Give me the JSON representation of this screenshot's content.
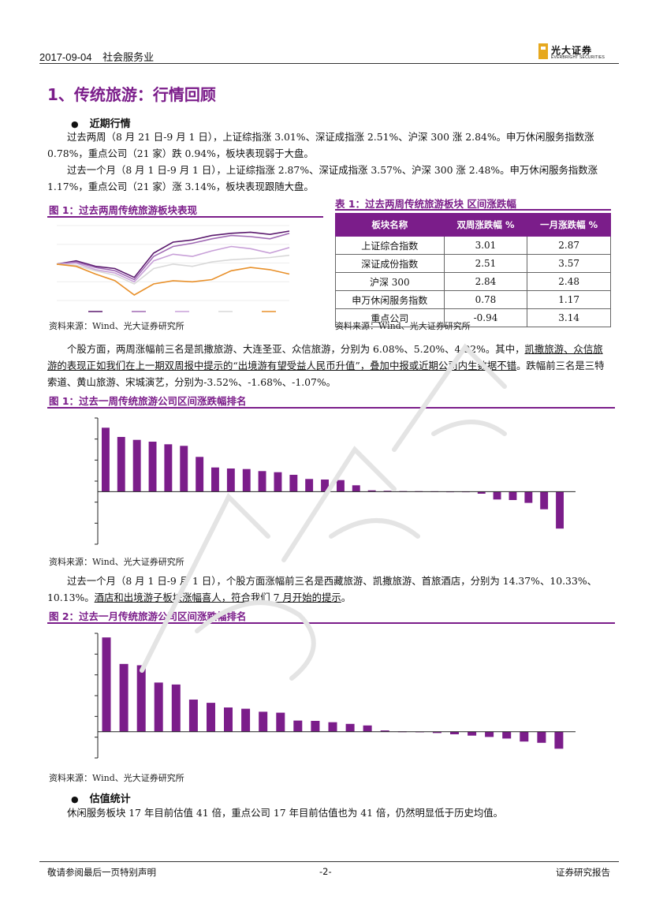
{
  "header": {
    "date": "2017-09-04",
    "industry": "社会服务业",
    "logo_cn": "光大证券",
    "logo_en": "EVERBRIGHT SECURITIES"
  },
  "section_title": "1、传统旅游：行情回顾",
  "recent": {
    "heading": "近期行情",
    "p1": "过去两周（8 月 21 日-9 月 1 日），上证综指涨 3.01%、深证成指涨 2.51%、沪深 300 涨 2.84%。申万休闲服务指数涨 0.78%，重点公司（21 家）跌 0.94%，板块表现弱于大盘。",
    "p2": "过去一个月（8 月 1 日-9 月 1 日），上证综指涨 2.87%、深证成指涨 3.57%、沪深 300 涨 2.48%。申万休闲服务指数涨 1.17%，重点公司（21 家）涨 3.14%，板块表现跟随大盘。"
  },
  "fig_line": {
    "title": "图 1：过去两周传统旅游板块表现",
    "source": "资料来源：Wind、光大证券研究所",
    "chart_data": {
      "type": "line",
      "series": [
        {
          "color": "#5b1a6e",
          "values": [
            0.0,
            0.3,
            -0.2,
            -0.4,
            -1.2,
            1.0,
            2.0,
            2.2,
            2.6,
            2.8,
            2.9,
            2.7,
            3.0
          ]
        },
        {
          "color": "#a06ab4",
          "values": [
            0.0,
            0.2,
            -0.3,
            -0.6,
            -1.4,
            0.7,
            1.6,
            1.9,
            2.3,
            2.6,
            2.5,
            2.3,
            2.8
          ]
        },
        {
          "color": "#c8a0d8",
          "values": [
            0.0,
            0.1,
            -0.5,
            -0.8,
            -1.6,
            0.3,
            0.9,
            0.7,
            1.2,
            1.6,
            1.4,
            1.0,
            1.5
          ]
        },
        {
          "color": "#d8d8d8",
          "values": [
            0.0,
            -0.1,
            -0.6,
            -1.0,
            -1.8,
            -0.4,
            0.0,
            -0.2,
            0.2,
            0.4,
            0.5,
            0.6,
            0.8
          ]
        },
        {
          "color": "#e8902a",
          "values": [
            0.0,
            -0.2,
            -0.9,
            -1.5,
            -2.8,
            -1.8,
            -1.5,
            -1.6,
            -1.4,
            -0.6,
            -0.3,
            -0.5,
            -0.9
          ]
        }
      ]
    }
  },
  "table1": {
    "title": "表 1：过去两周传统旅游板块 区间涨跌幅",
    "headers": [
      "板块名称",
      "双周涨跌幅 %",
      "一月涨跌幅 %"
    ],
    "rows": [
      [
        "上证综合指数",
        "3.01",
        "2.87"
      ],
      [
        "深证成份指数",
        "2.51",
        "3.57"
      ],
      [
        "沪深 300",
        "2.84",
        "2.48"
      ],
      [
        "申万休闲服务指数",
        "0.78",
        "1.17"
      ],
      [
        "重点公司",
        "-0.94",
        "3.14"
      ]
    ],
    "source": "资料来源：Wind、光大证券研究所"
  },
  "stock_para": {
    "a": "个股方面，两周涨幅前三名是凯撒旅游、大连圣亚、众信旅游，分别为 6.08%、5.20%、4.92%。其中，",
    "b": "凯撒旅游、众信旅游的表现正如我们在上一期双周报中提示的“出境游有望受益人民币升值”，叠加中报或近期公司内生数据不错",
    "c": "。跌幅前三名是三特索道、黄山旅游、宋城演艺，分别为-3.52%、-1.68%、-1.07%。"
  },
  "fig1": {
    "title": "图 1：过去一周传统旅游公司区间涨跌幅排名",
    "source": "资料来源：Wind、光大证券研究所",
    "chart_data": {
      "type": "bar",
      "color": "#7b1d8a",
      "values": [
        6.08,
        5.2,
        4.92,
        4.75,
        4.5,
        4.35,
        3.3,
        2.3,
        2.2,
        2.15,
        1.95,
        1.85,
        1.6,
        1.2,
        1.15,
        1.1,
        0.6,
        0.12,
        0.08,
        0.05,
        0.04,
        0.03,
        0.02,
        0.02,
        -0.2,
        -0.75,
        -0.8,
        -1.07,
        -1.68,
        -3.52
      ]
    }
  },
  "month_para": {
    "a": "过去一个月（8 月 1 日-9 月 1 日），个股方面涨幅前三名是西藏旅游、凯撒旅游、首旅酒店，分别为 14.37%、10.33%、10.13%。",
    "b": "酒店和出境游子板块涨幅喜人，符合我们 7 月开始的提示",
    "c": "。"
  },
  "fig2": {
    "title": "图 2：过去一月传统旅游公司区间涨跌幅排名",
    "source": "资料来源：Wind、光大证券研究所",
    "chart_data": {
      "type": "bar",
      "color": "#7b1d8a",
      "values": [
        14.37,
        10.33,
        10.13,
        7.5,
        7.2,
        4.9,
        4.4,
        3.7,
        3.5,
        3.05,
        2.9,
        1.7,
        1.65,
        1.45,
        1.2,
        0.95,
        0.2,
        0.05,
        0.03,
        -0.2,
        -0.4,
        -0.6,
        -0.8,
        -1.05,
        -1.5,
        -1.7,
        -2.6
      ]
    }
  },
  "valuation": {
    "heading": "估值统计",
    "p": "休闲服务板块 17 年目前估值 41 倍，重点公司 17 年目前估值也为 41 倍，仍然明显低于历史均值。"
  },
  "footer": {
    "left": "敬请参阅最后一页特别声明",
    "center": "-2-",
    "right": "证券研究报告"
  }
}
